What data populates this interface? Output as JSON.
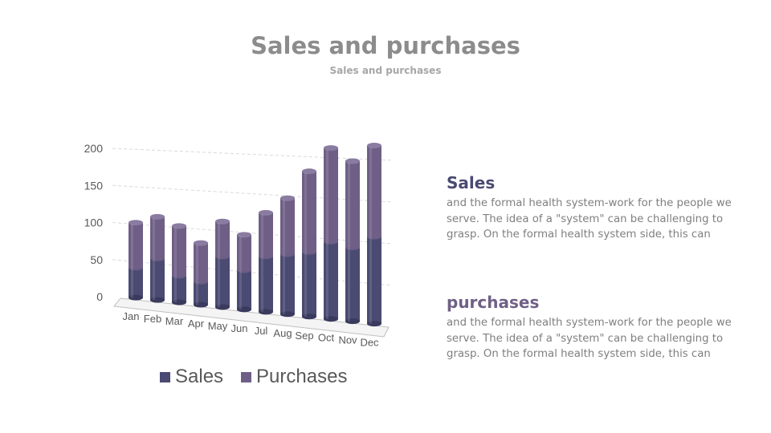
{
  "header": {
    "title": "Sales and purchases",
    "subtitle": "Sales and purchases"
  },
  "colors": {
    "sales": "#4a4a72",
    "purchases": "#6f5f86"
  },
  "chart_data": {
    "type": "bar",
    "stacked": true,
    "style": "3d-cylinder",
    "categories": [
      "Jan",
      "Feb",
      "Mar",
      "Apr",
      "May",
      "Jun",
      "Jul",
      "Aug",
      "Sep",
      "Oct",
      "Nov",
      "Dec"
    ],
    "series": [
      {
        "name": "Sales",
        "values": [
          40,
          55,
          35,
          30,
          65,
          50,
          70,
          75,
          80,
          95,
          90,
          105
        ]
      },
      {
        "name": "Purchases",
        "values": [
          60,
          55,
          65,
          50,
          45,
          45,
          55,
          70,
          100,
          115,
          105,
          110
        ]
      }
    ],
    "yticks": [
      0,
      50,
      100,
      150,
      200
    ],
    "ylim": [
      0,
      200
    ],
    "grid": true,
    "legend": "bottom"
  },
  "blocks": [
    {
      "heading": "Sales",
      "body": "and the formal health system-work for the people we serve. The idea of a \"system\" can be challenging to grasp. On the formal health system side, this can"
    },
    {
      "heading": "purchases",
      "body": "and the formal health system-work for the people we serve. The idea of a \"system\" can be challenging to grasp. On the formal health system side, this can"
    }
  ]
}
